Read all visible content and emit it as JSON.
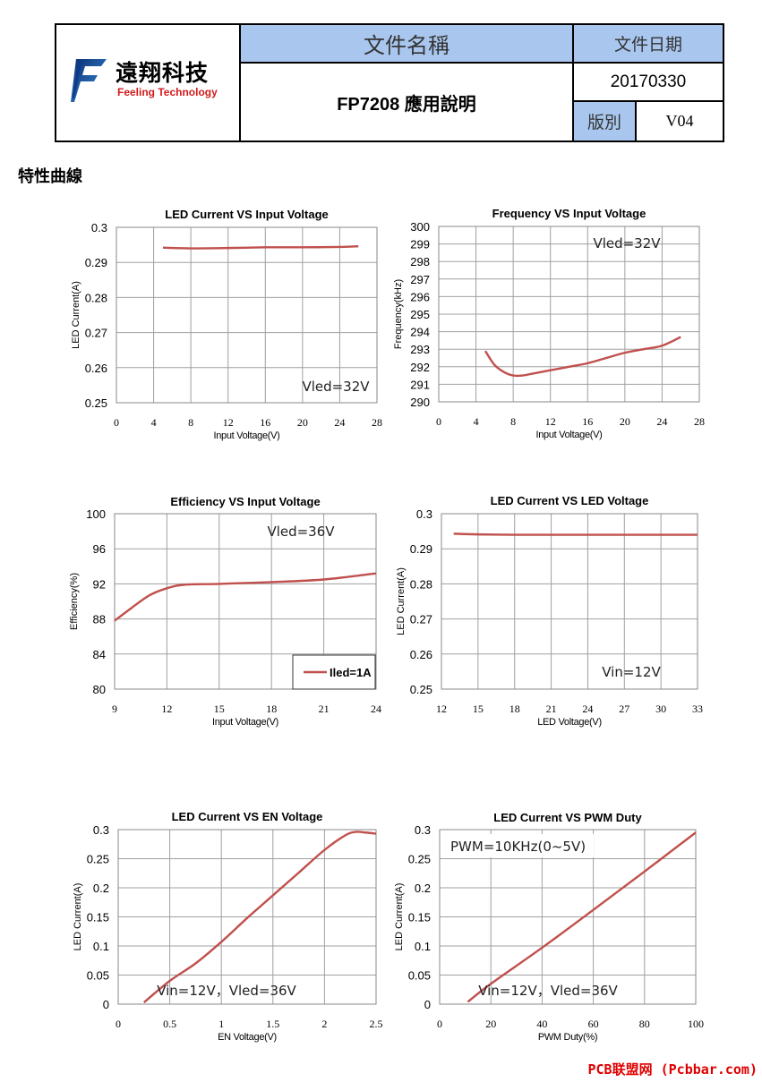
{
  "header": {
    "logo_cn": "遠翔科技",
    "logo_en": "Feeling Technology",
    "doc_name_label": "文件名稱",
    "doc_name": "FP7208 應用說明",
    "date_label": "文件日期",
    "date": "20170330",
    "version_label": "版別",
    "version": "V04"
  },
  "section_title": "特性曲線",
  "colors": {
    "curve": "#c0504d",
    "header_blue": "#a9c7ee",
    "grid": "#a0a0a0",
    "watermark": "#e00000"
  },
  "watermark": "PCB联盟网 (Pcbbar.com)",
  "chart_data": [
    {
      "type": "line",
      "title": "LED Current VS Input Voltage",
      "xlabel": "Input Voltage(V)",
      "ylabel": "LED Current(A)",
      "xlim": [
        0,
        28
      ],
      "ylim": [
        0.25,
        0.3
      ],
      "xticks": [
        "0",
        "4",
        "8",
        "12",
        "16",
        "20",
        "24",
        "28"
      ],
      "yticks": [
        "0.25",
        "0.26",
        "0.27",
        "0.28",
        "0.29",
        "0.3"
      ],
      "annotation": "Vled=32V",
      "series": [
        {
          "x": [
            5,
            8,
            12,
            16,
            20,
            24,
            26
          ],
          "y": [
            0.2942,
            0.294,
            0.2941,
            0.2943,
            0.2943,
            0.2944,
            0.2946
          ]
        }
      ]
    },
    {
      "type": "line",
      "title": "Frequency VS Input Voltage",
      "xlabel": "Input Voltage(V)",
      "ylabel": "Frequency(kHz)",
      "xlim": [
        0,
        28
      ],
      "ylim": [
        290,
        300
      ],
      "xticks": [
        "0",
        "4",
        "8",
        "12",
        "16",
        "20",
        "24",
        "28"
      ],
      "yticks": [
        "290",
        "291",
        "292",
        "293",
        "294",
        "295",
        "296",
        "297",
        "298",
        "299",
        "300"
      ],
      "annotation": "Vled=32V",
      "series": [
        {
          "x": [
            5,
            6,
            7,
            8,
            9,
            10,
            12,
            14,
            16,
            18,
            20,
            22,
            24,
            26
          ],
          "y": [
            292.9,
            292.1,
            291.7,
            291.5,
            291.5,
            291.6,
            291.8,
            292.0,
            292.2,
            292.5,
            292.8,
            293.0,
            293.2,
            293.7
          ]
        }
      ]
    },
    {
      "type": "line",
      "title": "Efficiency VS Input Voltage",
      "xlabel": "Input Voltage(V)",
      "ylabel": "Efficiency(%)",
      "xlim": [
        9,
        24
      ],
      "ylim": [
        80,
        100
      ],
      "xticks": [
        "9",
        "12",
        "15",
        "18",
        "21",
        "24"
      ],
      "yticks": [
        "80",
        "84",
        "88",
        "92",
        "96",
        "100"
      ],
      "annotation": "Vled=36V",
      "legend": "Iled=1A",
      "series": [
        {
          "name": "Iled=1A",
          "x": [
            9,
            10,
            11,
            12,
            13,
            15,
            18,
            21,
            24
          ],
          "y": [
            87.8,
            89.3,
            90.7,
            91.5,
            91.9,
            92.0,
            92.2,
            92.5,
            93.2
          ]
        }
      ]
    },
    {
      "type": "line",
      "title": "LED Current VS LED Voltage",
      "xlabel": "LED Voltage(V)",
      "ylabel": "LED Current(A)",
      "xlim": [
        12,
        33
      ],
      "ylim": [
        0.25,
        0.3
      ],
      "xticks": [
        "12",
        "15",
        "18",
        "21",
        "24",
        "27",
        "30",
        "33"
      ],
      "yticks": [
        "0.25",
        "0.26",
        "0.27",
        "0.28",
        "0.29",
        "0.3"
      ],
      "annotation": "Vin=12V",
      "series": [
        {
          "x": [
            13,
            15,
            18,
            21,
            24,
            27,
            30,
            33
          ],
          "y": [
            0.2943,
            0.2941,
            0.294,
            0.294,
            0.294,
            0.294,
            0.294,
            0.294
          ]
        }
      ]
    },
    {
      "type": "line",
      "title": "LED Current VS EN Voltage",
      "xlabel": "EN Voltage(V)",
      "ylabel": "LED Current(A)",
      "xlim": [
        0,
        2.5
      ],
      "ylim": [
        0,
        0.3
      ],
      "xticks": [
        "0",
        "0.5",
        "1",
        "1.5",
        "2",
        "2.5"
      ],
      "yticks": [
        "0",
        "0.05",
        "0.1",
        "0.15",
        "0.2",
        "0.25",
        "0.3"
      ],
      "annotation": "Vin=12V，Vled=36V",
      "series": [
        {
          "x": [
            0.25,
            0.5,
            0.75,
            1.0,
            1.25,
            1.5,
            1.75,
            2.0,
            2.2,
            2.3,
            2.4,
            2.5
          ],
          "y": [
            0.003,
            0.04,
            0.07,
            0.107,
            0.148,
            0.187,
            0.226,
            0.265,
            0.29,
            0.296,
            0.295,
            0.293
          ]
        }
      ]
    },
    {
      "type": "line",
      "title": "LED Current VS PWM Duty",
      "xlabel": "PWM Duty(%)",
      "ylabel": "LED Current(A)",
      "xlim": [
        0,
        100
      ],
      "ylim": [
        0,
        0.3
      ],
      "xticks": [
        "0",
        "20",
        "40",
        "60",
        "80",
        "100"
      ],
      "yticks": [
        "0",
        "0.05",
        "0.1",
        "0.15",
        "0.2",
        "0.25",
        "0.3"
      ],
      "annotation": "Vin=12V，Vled=36V",
      "annotation2": "PWM=10KHz(0~5V)",
      "series": [
        {
          "x": [
            11,
            20,
            40,
            60,
            80,
            100
          ],
          "y": [
            0.004,
            0.035,
            0.097,
            0.162,
            0.228,
            0.295
          ]
        }
      ]
    }
  ]
}
